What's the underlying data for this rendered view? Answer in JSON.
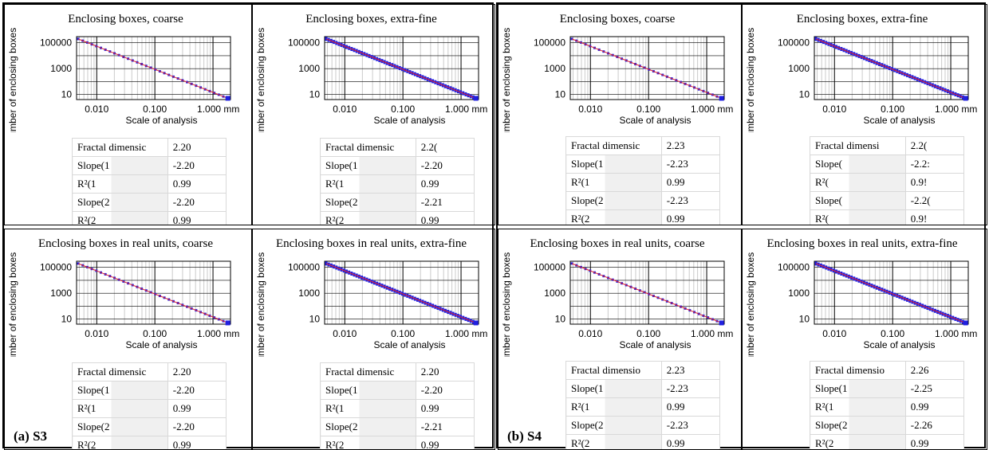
{
  "shared": {
    "ylabel": "Number of enclosing boxes",
    "xlabel": "Scale of analysis",
    "xticks": [
      "0.010",
      "0.100",
      "1.000 mm"
    ],
    "yticks": [
      "100000",
      "1000",
      "10"
    ],
    "colors": {
      "line": "#e0202a",
      "points": "#2020e0"
    }
  },
  "groups": [
    {
      "label": "(a) S3"
    },
    {
      "label": "(b) S4"
    }
  ],
  "panels": [
    {
      "title": "Enclosing boxes, coarse",
      "fine": false,
      "table": [
        [
          "Fractal dimensic",
          "2.20"
        ],
        [
          "Slope(1",
          "-2.20"
        ],
        [
          "R²(1",
          "0.99"
        ],
        [
          "Slope(2",
          "-2.20"
        ],
        [
          "R²(2",
          "0.99"
        ]
      ],
      "chart_data": {
        "type": "line",
        "x": [
          0.0048,
          1.8
        ],
        "y": [
          200000,
          5
        ],
        "xlim": [
          0.0045,
          2
        ],
        "ylim": [
          4,
          300000
        ],
        "xscale": "log",
        "yscale": "log"
      }
    },
    {
      "title": "Enclosing boxes, extra-fine",
      "fine": true,
      "table": [
        [
          "Fractal dimensic",
          "2.2("
        ],
        [
          "Slope(1",
          "-2.20"
        ],
        [
          "R²(1",
          "0.99"
        ],
        [
          "Slope(2",
          "-2.21"
        ],
        [
          "R²(2",
          "0.99"
        ]
      ],
      "chart_data": {
        "type": "line",
        "x": [
          0.0048,
          1.8
        ],
        "y": [
          200000,
          5
        ],
        "xlim": [
          0.0045,
          2
        ],
        "ylim": [
          4,
          300000
        ],
        "xscale": "log",
        "yscale": "log"
      }
    },
    {
      "title": "Enclosing boxes, coarse",
      "fine": false,
      "table": [
        [
          "Fractal dimensic",
          "2.23"
        ],
        [
          "Slope(1",
          "-2.23"
        ],
        [
          "R²(1",
          "0.99"
        ],
        [
          "Slope(2",
          "-2.23"
        ],
        [
          "R²(2",
          "0.99"
        ]
      ],
      "chart_data": {
        "type": "line",
        "x": [
          0.0048,
          1.8
        ],
        "y": [
          200000,
          5
        ],
        "xlim": [
          0.0045,
          2
        ],
        "ylim": [
          4,
          300000
        ],
        "xscale": "log",
        "yscale": "log"
      }
    },
    {
      "title": "Enclosing boxes, extra-fine",
      "fine": true,
      "table": [
        [
          "Fractal dimensi",
          "2.2("
        ],
        [
          "Slope(",
          "-2.2:"
        ],
        [
          "R²(",
          "0.9!"
        ],
        [
          "Slope(",
          "-2.2("
        ],
        [
          "R²(",
          "0.9!"
        ]
      ],
      "chart_data": {
        "type": "line",
        "x": [
          0.0048,
          1.8
        ],
        "y": [
          200000,
          5
        ],
        "xlim": [
          0.0045,
          2
        ],
        "ylim": [
          4,
          300000
        ],
        "xscale": "log",
        "yscale": "log"
      }
    },
    {
      "title": "Enclosing boxes in real units, coarse",
      "fine": false,
      "table": [
        [
          "Fractal dimensic",
          "2.20"
        ],
        [
          "Slope(1",
          "-2.20"
        ],
        [
          "R²(1",
          "0.99"
        ],
        [
          "Slope(2",
          "-2.20"
        ],
        [
          "R²(2",
          "0.99"
        ]
      ],
      "chart_data": {
        "type": "line",
        "x": [
          0.0048,
          1.8
        ],
        "y": [
          200000,
          5
        ],
        "xlim": [
          0.0045,
          2
        ],
        "ylim": [
          4,
          300000
        ],
        "xscale": "log",
        "yscale": "log"
      }
    },
    {
      "title": "Enclosing boxes in real units, extra-fine",
      "fine": true,
      "table": [
        [
          "Fractal dimensic",
          "2.20"
        ],
        [
          "Slope(1",
          "-2.20"
        ],
        [
          "R²(1",
          "0.99"
        ],
        [
          "Slope(2",
          "-2.21"
        ],
        [
          "R²(2",
          "0.99"
        ]
      ],
      "chart_data": {
        "type": "line",
        "x": [
          0.0048,
          1.8
        ],
        "y": [
          200000,
          5
        ],
        "xlim": [
          0.0045,
          2
        ],
        "ylim": [
          4,
          300000
        ],
        "xscale": "log",
        "yscale": "log"
      }
    },
    {
      "title": "Enclosing boxes in real units, coarse",
      "fine": false,
      "table": [
        [
          "Fractal dimensio",
          "2.23"
        ],
        [
          "Slope(1",
          "-2.23"
        ],
        [
          "R²(1",
          "0.99"
        ],
        [
          "Slope(2",
          "-2.23"
        ],
        [
          "R²(2",
          "0.99"
        ]
      ],
      "chart_data": {
        "type": "line",
        "x": [
          0.0048,
          1.8
        ],
        "y": [
          200000,
          5
        ],
        "xlim": [
          0.0045,
          2
        ],
        "ylim": [
          4,
          300000
        ],
        "xscale": "log",
        "yscale": "log"
      }
    },
    {
      "title": "Enclosing boxes in real units, extra-fine",
      "fine": true,
      "table": [
        [
          "Fractal dimensio",
          "2.26"
        ],
        [
          "Slope(1",
          "-2.25"
        ],
        [
          "R²(1",
          "0.99"
        ],
        [
          "Slope(2",
          "-2.26"
        ],
        [
          "R²(2",
          "0.99"
        ]
      ],
      "chart_data": {
        "type": "line",
        "x": [
          0.0048,
          1.8
        ],
        "y": [
          200000,
          5
        ],
        "xlim": [
          0.0045,
          2
        ],
        "ylim": [
          4,
          300000
        ],
        "xscale": "log",
        "yscale": "log"
      }
    }
  ]
}
